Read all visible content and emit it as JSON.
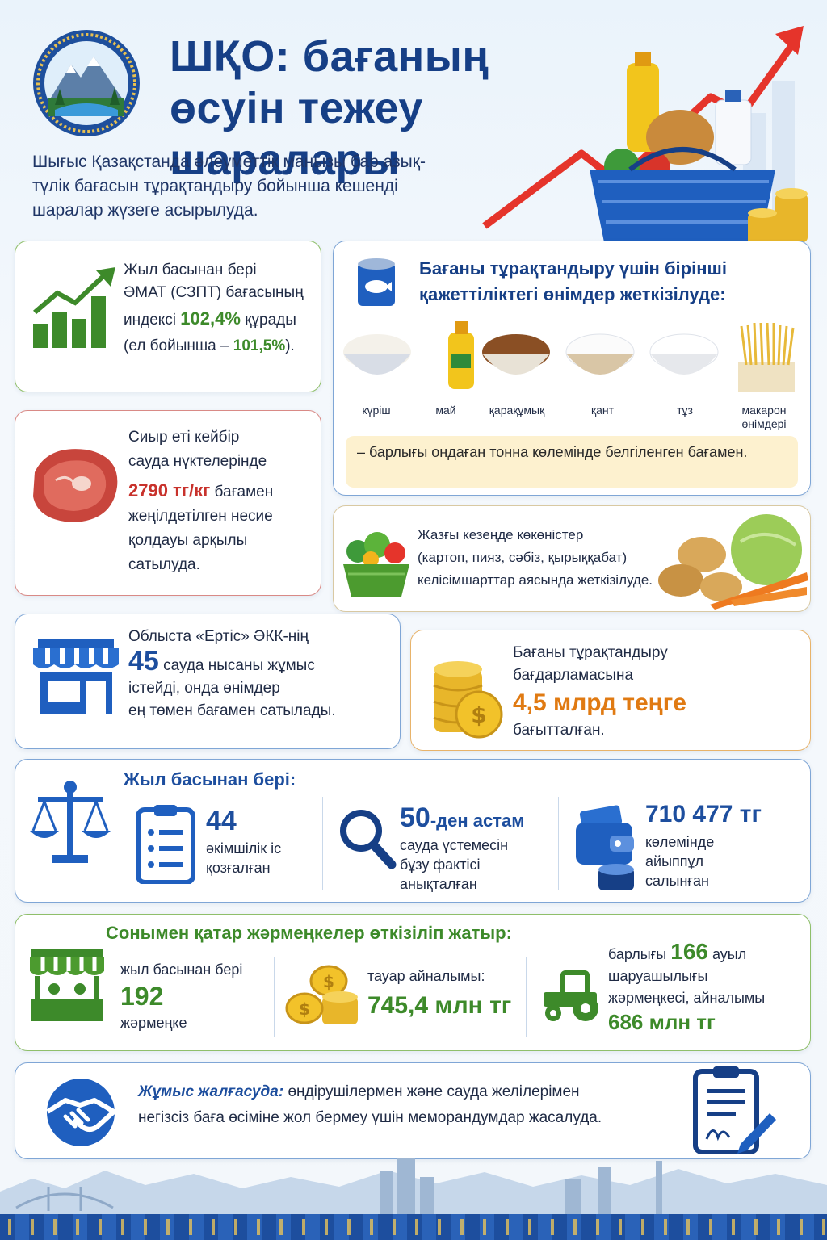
{
  "header": {
    "title_line1": "ШҚО: бағаның",
    "title_line2": "өсуін тежеу шаралары",
    "intro": "Шығыс Қазақстанда әлеуметтік маңызы бар азық-түлік бағасын тұрақтандыру бойынша кешенді шаралар жүзеге асырылуда."
  },
  "index_card": {
    "line1": "Жыл басынан бері",
    "line2": "ӘМАТ (СЗПТ) бағасының",
    "line3_pre": "индексі ",
    "value": "102,4%",
    "line3_post": " құрады",
    "line4_pre": "(ел бойынша – ",
    "country_value": "101,5%",
    "line4_post": ")."
  },
  "products_card": {
    "title": "Бағаны тұрақтандыру үшін бірінші қажеттіліктегі өнімдер жеткізілуде:",
    "items": [
      {
        "label": "күріш",
        "icon": "rice-bowl-icon"
      },
      {
        "label": "май",
        "icon": "oil-bottle-icon"
      },
      {
        "label": "қарақұмық",
        "icon": "buckwheat-bowl-icon"
      },
      {
        "label": "қант",
        "icon": "sugar-bowl-icon"
      },
      {
        "label": "тұз",
        "icon": "salt-bowl-icon"
      },
      {
        "label": "макарон өнімдері",
        "icon": "pasta-icon"
      }
    ],
    "note": "– барлығы ондаған тонна көлемінде белгіленген бағамен."
  },
  "beef_card": {
    "line1": "Сиыр еті кейбір",
    "line2": "сауда нүктелерінде",
    "price": "2790 тг/кг",
    "line3_post": " бағамен",
    "line4": "жеңілдетілген несие",
    "line5": "қолдауы арқылы",
    "line6": "сатылуда."
  },
  "vegetables_card": {
    "line1": "Жазғы кезеңде көкөністер",
    "line2": "(картоп, пияз, сәбіз, қырыққабат)",
    "line3": "келісімшарттар аясында жеткізілуде."
  },
  "stores_card": {
    "line1": "Облыста «Ертіс» ӘКК-нің",
    "count": "45",
    "line2_post": " сауда нысаны жұмыс",
    "line3": "істейді, онда өнімдер",
    "line4": "ең төмен бағамен сатылады."
  },
  "program_card": {
    "line1": "Бағаны тұрақтандыру",
    "line2": "бағдарламасына",
    "amount": "4,5 млрд теңге",
    "line3": "бағытталған."
  },
  "enforcement": {
    "title": "Жыл басынан бері:",
    "cases_value": "44",
    "cases_line1": "әкімшілік іс",
    "cases_line2": "қозғалған",
    "violations_value": "50",
    "violations_suffix": "-ден астам",
    "violations_line1": "сауда үстемесін",
    "violations_line2": "бұзу фактісі",
    "violations_line3": "анықталған",
    "fines_value": "710 477 тг",
    "fines_line1": "көлемінде",
    "fines_line2": "айыппұл",
    "fines_line3": "салынған"
  },
  "fairs": {
    "title": "Сонымен қатар жәрмеңкелер өткізіліп жатыр:",
    "count_pre": "жыл басынан бері",
    "count_value": "192",
    "count_post": "жәрмеңке",
    "turnover_label": "тауар айналымы:",
    "turnover_value": "745,4 млн тг",
    "rural_pre": "барлығы ",
    "rural_value": "166",
    "rural_post": " ауыл",
    "rural_line2": "шаруашылығы",
    "rural_line3": "жәрмеңкесі, айналымы",
    "rural_turnover": "686 млн тг"
  },
  "memo": {
    "bold": "Жұмыс жалғасуда:",
    "line1_post": " өндірушілермен және сауда желілерімен",
    "line2": "негізсіз баға өсіміне жол бермеу үшін меморандумдар жасалуда."
  },
  "colors": {
    "primary_blue": "#163f86",
    "green": "#3d8a2a",
    "red": "#c8322c",
    "orange": "#e07a12"
  }
}
